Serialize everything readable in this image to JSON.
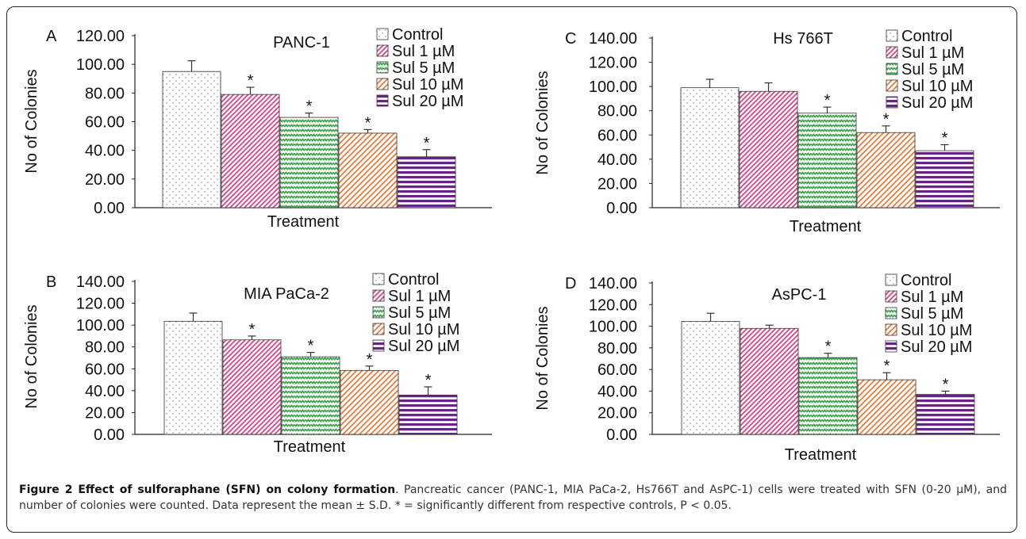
{
  "chart_data": [
    {
      "type": "bar",
      "panel_letter": "A",
      "title": "PANC-1",
      "xlabel": "Treatment",
      "ylabel": "No of Colonies",
      "ylim": [
        0,
        120
      ],
      "yticks": [
        "0.00",
        "20.00",
        "40.00",
        "60.00",
        "80.00",
        "100.00",
        "120.00"
      ],
      "categories": [
        "Control",
        "Sul 1 µM",
        "Sul 5 µM",
        "Sul 10 µM",
        "Sul 20 µM"
      ],
      "values": [
        95,
        79,
        63,
        52,
        35.5
      ],
      "errors": [
        7.5,
        5,
        3,
        2.5,
        5
      ],
      "significant": [
        false,
        true,
        true,
        true,
        true
      ],
      "sig_label": "*"
    },
    {
      "type": "bar",
      "panel_letter": "C",
      "title": "Hs 766T",
      "xlabel": "Treatment",
      "ylabel": "No of Colonies",
      "ylim": [
        0,
        140
      ],
      "yticks": [
        "0.00",
        "20.00",
        "40.00",
        "60.00",
        "80.00",
        "100.00",
        "120.00",
        "140.00"
      ],
      "categories": [
        "Control",
        "Sul 1 µM",
        "Sul 5 µM",
        "Sul 10 µM",
        "Sul 20 µM"
      ],
      "values": [
        99,
        96,
        78,
        62,
        47
      ],
      "errors": [
        7,
        7,
        5,
        5.5,
        5
      ],
      "significant": [
        false,
        false,
        true,
        true,
        true
      ],
      "sig_label": "*"
    },
    {
      "type": "bar",
      "panel_letter": "B",
      "title": "MIA PaCa-2",
      "xlabel": "Treatment",
      "ylabel": "No of Colonies",
      "ylim": [
        0,
        140
      ],
      "yticks": [
        "0.00",
        "20.00",
        "40.00",
        "60.00",
        "80.00",
        "100.00",
        "120.00",
        "140.00"
      ],
      "categories": [
        "Control",
        "Sul 1 µM",
        "Sul 5 µM",
        "Sul 10 µM",
        "Sul 20 µM"
      ],
      "values": [
        103.5,
        86.5,
        71,
        58.5,
        36
      ],
      "errors": [
        7.5,
        3.5,
        4,
        4,
        7.5
      ],
      "significant": [
        false,
        true,
        true,
        true,
        true
      ],
      "sig_label": "*"
    },
    {
      "type": "bar",
      "panel_letter": "D",
      "title": "AsPC-1",
      "xlabel": "Treatment",
      "ylabel": "No of Colonies",
      "ylim": [
        0,
        140
      ],
      "yticks": [
        "0.00",
        "20.00",
        "40.00",
        "60.00",
        "80.00",
        "100.00",
        "120.00",
        "140.00"
      ],
      "categories": [
        "Control",
        "Sul 1 µM",
        "Sul 5 µM",
        "Sul 10 µM",
        "Sul 20 µM"
      ],
      "values": [
        104.5,
        98,
        71,
        50.5,
        37
      ],
      "errors": [
        7.5,
        3,
        4,
        6.5,
        3
      ],
      "significant": [
        false,
        false,
        true,
        true,
        true
      ],
      "sig_label": "*"
    }
  ],
  "series_styles": [
    {
      "name": "Control",
      "color": "#aab6cc",
      "pattern": "dots"
    },
    {
      "name": "Sul 1 µM",
      "color": "#d8438a",
      "pattern": "diagonal"
    },
    {
      "name": "Sul 5 µM",
      "color": "#3fa84c",
      "pattern": "zigzag"
    },
    {
      "name": "Sul 10 µM",
      "color": "#ef7a3a",
      "pattern": "diagonal"
    },
    {
      "name": "Sul 20 µM",
      "color": "#6a2584",
      "pattern": "horizontal"
    }
  ],
  "caption": {
    "title": "Figure 2 Effect of sulforaphane (SFN) on colony formation",
    "body": ". Pancreatic cancer (PANC-1, MIA PaCa-2, Hs766T and AsPC-1) cells were treated with SFN (0-20 µM), and number of colonies were counted. Data represent the mean ± S.D. * = significantly different from respective controls, P < 0.05."
  }
}
